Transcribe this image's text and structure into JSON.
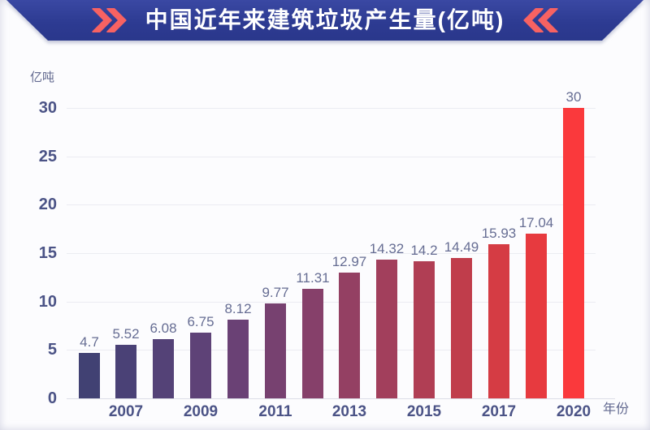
{
  "banner": {
    "title": "中国近年来建筑垃圾产生量(亿吨)",
    "left_icon": "double-chevron-right",
    "right_icon": "double-chevron-left",
    "background_color": "#2d3b92",
    "chevron_color": "#f76262",
    "title_color": "#ffffff"
  },
  "chart_data": {
    "type": "bar",
    "title": "中国近年来建筑垃圾产生量(亿吨)",
    "unit_label": "亿吨",
    "x_axis_label": "年份",
    "x_labels": [
      "",
      "2007",
      "",
      "2009",
      "",
      "2011",
      "",
      "2013",
      "",
      "2015",
      "",
      "2017",
      "",
      "2020"
    ],
    "values": [
      4.7,
      5.52,
      6.08,
      6.75,
      8.12,
      9.77,
      11.31,
      12.97,
      14.32,
      14.2,
      14.49,
      15.93,
      17.04,
      30
    ],
    "bar_colors": [
      "#414173",
      "#4a4176",
      "#544277",
      "#5e4277",
      "#6a4175",
      "#774170",
      "#86406a",
      "#944063",
      "#a23f5c",
      "#b03e54",
      "#c03d4b",
      "#d53c44",
      "#e73a3f",
      "#fa393c"
    ],
    "y_ticks": [
      0,
      5,
      10,
      15,
      20,
      25,
      30
    ],
    "ylim": [
      0,
      30
    ],
    "grid": true,
    "legend": "none",
    "gridline_color": "#ebecf2",
    "tick_label_color": "#4b5386",
    "value_label_color": "#666d93"
  }
}
